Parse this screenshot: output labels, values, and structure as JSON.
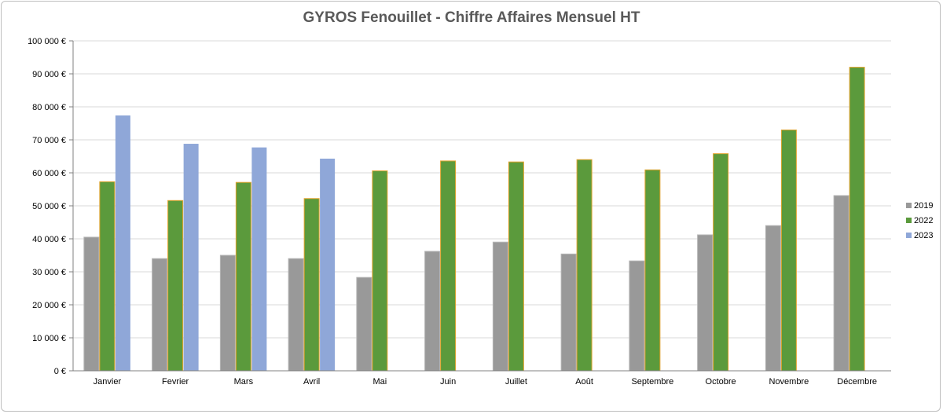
{
  "chart_data": {
    "type": "bar",
    "title": "GYROS Fenouillet - Chiffre Affaires Mensuel HT",
    "categories": [
      "Janvier",
      "Fevrier",
      "Mars",
      "Avril",
      "Mai",
      "Juin",
      "Juillet",
      "Août",
      "Septembre",
      "Octobre",
      "Novembre",
      "Décembre"
    ],
    "series": [
      {
        "name": "2019",
        "color": "#999999",
        "values": [
          40500,
          34000,
          35000,
          34000,
          28300,
          36200,
          39000,
          35400,
          33300,
          41200,
          44000,
          53100
        ]
      },
      {
        "name": "2022",
        "color": "#5b9a3c",
        "values": [
          57300,
          51600,
          57100,
          52200,
          60600,
          63600,
          63300,
          64000,
          60900,
          65800,
          73000,
          92000
        ]
      },
      {
        "name": "2023",
        "color": "#8fa7d8",
        "values": [
          77400,
          68800,
          67700,
          64300,
          null,
          null,
          null,
          null,
          null,
          null,
          null,
          null
        ]
      }
    ],
    "ylim": [
      0,
      100000
    ],
    "yticks": [
      "0 €",
      "10 000 €",
      "20 000 €",
      "30 000 €",
      "40 000 €",
      "50 000 €",
      "60 000 €",
      "70 000 €",
      "80 000 €",
      "90 000 €",
      "100 000 €"
    ],
    "xlabel": "",
    "ylabel": "",
    "grid": true,
    "legend": "right"
  }
}
